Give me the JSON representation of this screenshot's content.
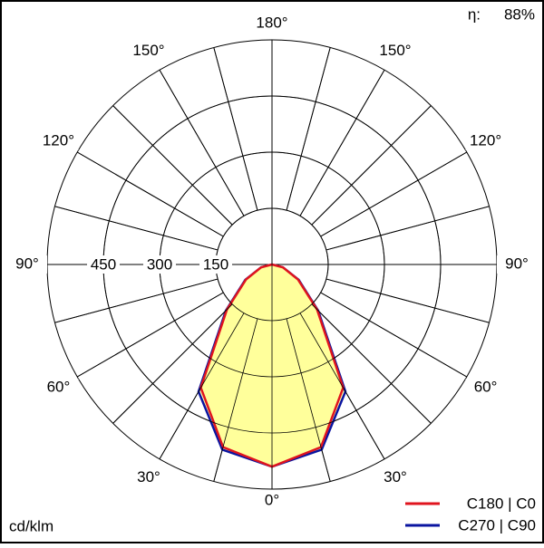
{
  "chart_data": {
    "type": "polar",
    "unit": "cd/klm",
    "efficiency_symbol": "η:",
    "efficiency": {
      "value": 88,
      "label": "88%"
    },
    "angles": [
      0,
      15,
      30,
      45,
      60,
      75,
      90,
      105,
      120,
      135,
      150,
      165,
      180
    ],
    "series": [
      {
        "name": "C180 | C0",
        "color": "#e0141e",
        "values": [
          540,
          505,
          380,
          170,
          80,
          30,
          0,
          0,
          0,
          0,
          0,
          0,
          0
        ]
      },
      {
        "name": "C270 | C90",
        "color": "#0a14a0",
        "values": [
          540,
          512,
          392,
          174,
          82,
          30,
          0,
          0,
          0,
          0,
          0,
          0,
          0
        ]
      }
    ],
    "fill": "#ffff99",
    "rlim": [
      0,
      600
    ],
    "rticks": [
      150,
      300,
      450
    ],
    "angle_grid_step": 15,
    "angleticks": [
      {
        "value": 0,
        "label": "0°"
      },
      {
        "value": 30,
        "label": "30°"
      },
      {
        "value": 60,
        "label": "60°"
      },
      {
        "value": 90,
        "label": "90°"
      },
      {
        "value": 120,
        "label": "120°"
      },
      {
        "value": 150,
        "label": "150°"
      },
      {
        "value": 180,
        "label": "180°"
      }
    ]
  }
}
